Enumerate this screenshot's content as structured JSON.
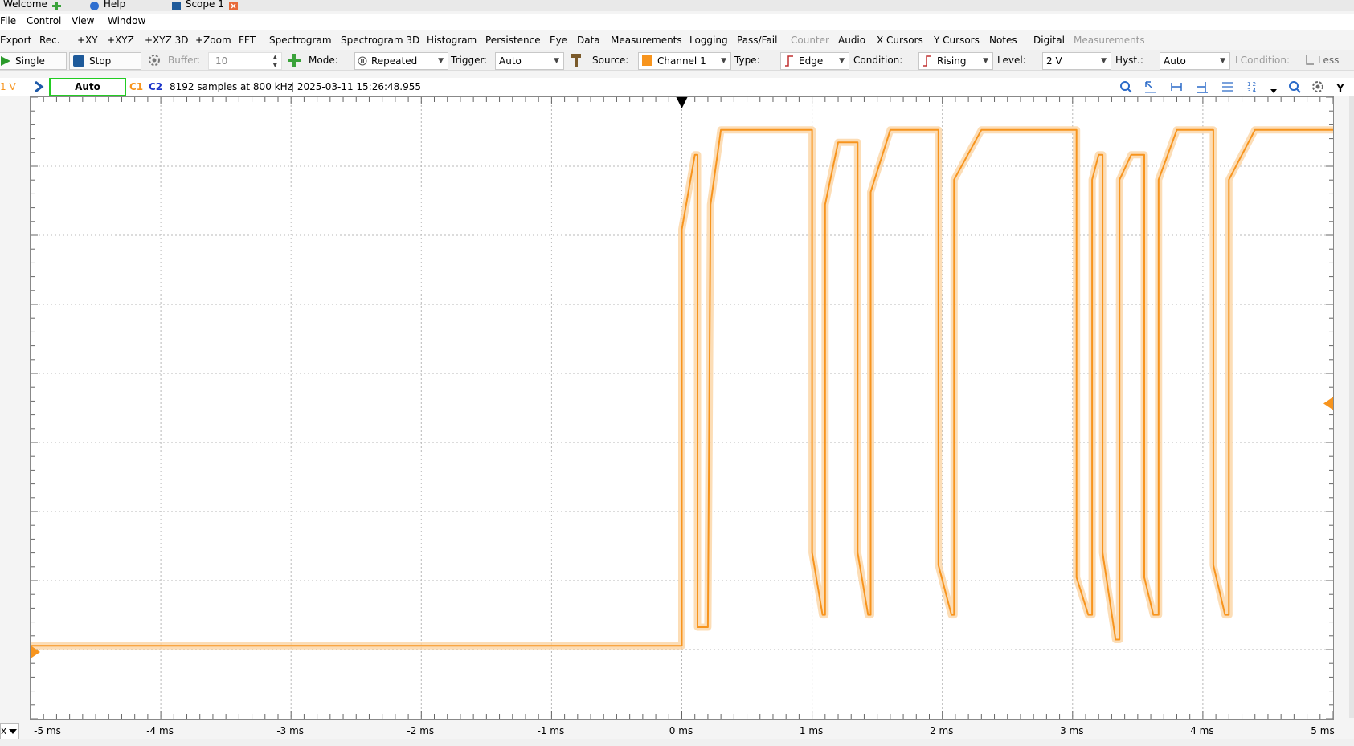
{
  "tabs": [
    {
      "label": "Welcome",
      "icon": "plus-icon"
    },
    {
      "label": "Help",
      "icon": "help-icon"
    },
    {
      "label": "Scope 1",
      "icon": "scope-icon",
      "close_icon": "close-icon"
    }
  ],
  "menu": [
    "File",
    "Control",
    "View",
    "Window"
  ],
  "toolbar": {
    "items": [
      "Export",
      "Rec.",
      "+XY",
      "+XYZ",
      "+XYZ 3D",
      "+Zoom",
      "FFT",
      "Spectrogram",
      "Spectrogram 3D",
      "Histogram",
      "Persistence",
      "Eye",
      "Data",
      "Measurements",
      "Logging",
      "Pass/Fail",
      "Counter",
      "Audio",
      "X Cursors",
      "Y Cursors",
      "Notes",
      "Digital",
      "Measurements"
    ],
    "disabled": [
      "Counter",
      "Measurements2"
    ]
  },
  "controls": {
    "single": "Single",
    "stop": "Stop",
    "buffer_label": "Buffer:",
    "buffer_value": "10",
    "mode_label": "Mode:",
    "mode_value": "Repeated",
    "trigger_label": "Trigger:",
    "trigger_value": "Auto",
    "source_label": "Source:",
    "source_value": "Channel 1",
    "type_label": "Type:",
    "type_value": "Edge",
    "condition_label": "Condition:",
    "condition_value": "Rising",
    "level_label": "Level:",
    "level_value": "2 V",
    "hyst_label": "Hyst.:",
    "hyst_value": "Auto",
    "lcondition_label": "LCondition:",
    "less": "Less"
  },
  "info": {
    "volt": "1 V",
    "status": "Auto",
    "c1": "C1",
    "c2": "C2",
    "samples": "8192 samples at 800 kHz",
    "timestamp": "| 2025-03-11 15:26:48.955",
    "y_button": "Y"
  },
  "colors": {
    "trace": "#f7941d",
    "trace_light": "#fbd4a4",
    "status_border": "#22cc22",
    "c2": "#1a33c8",
    "grid": "#b8b8b8"
  },
  "x_axis": {
    "labels": [
      "-5 ms",
      "-4 ms",
      "-3 ms",
      "-2 ms",
      "-1 ms",
      "0 ms",
      "1 ms",
      "2 ms",
      "3 ms",
      "4 ms",
      "5 ms"
    ],
    "values": [
      -5,
      -4,
      -3,
      -2,
      -1,
      0,
      1,
      2,
      3,
      4,
      5
    ],
    "divisions_x": 10,
    "divisions_y": 9,
    "first_prefix": "x"
  },
  "chart_data": {
    "type": "line",
    "x_unit": "ms",
    "xlim": [
      -5,
      5
    ],
    "y_divisions": 9,
    "series": [
      {
        "x": [
          -5,
          0,
          0.0,
          0.1,
          0.12,
          0.12,
          0.2,
          0.22,
          0.22,
          0.3,
          1.0,
          1.0,
          1.08,
          1.1,
          1.1,
          1.2,
          1.35,
          1.35,
          1.43,
          1.45,
          1.45,
          1.6,
          1.97,
          1.97,
          2.07,
          2.09,
          2.09,
          2.3,
          3.03,
          3.03,
          3.12,
          3.15,
          3.15,
          3.2,
          3.23,
          3.23,
          3.33,
          3.36,
          3.36,
          3.45,
          3.55,
          3.55,
          3.62,
          3.66,
          3.66,
          3.8,
          4.08,
          4.08,
          4.17,
          4.2,
          4.2,
          4.4,
          5.0
        ],
        "y": [
          0.05,
          0.05,
          3.4,
          4.0,
          4.0,
          0.2,
          0.2,
          3.6,
          3.6,
          4.2,
          4.2,
          0.8,
          0.3,
          0.3,
          3.6,
          4.1,
          4.1,
          0.8,
          0.3,
          0.3,
          3.7,
          4.2,
          4.2,
          0.7,
          0.3,
          0.3,
          3.8,
          4.2,
          4.2,
          0.6,
          0.3,
          0.3,
          3.8,
          4.0,
          4.0,
          0.8,
          0.1,
          0.1,
          3.8,
          4.0,
          4.0,
          0.6,
          0.3,
          0.3,
          3.8,
          4.2,
          4.2,
          0.7,
          0.3,
          0.3,
          3.8,
          4.2,
          4.2
        ]
      }
    ]
  }
}
